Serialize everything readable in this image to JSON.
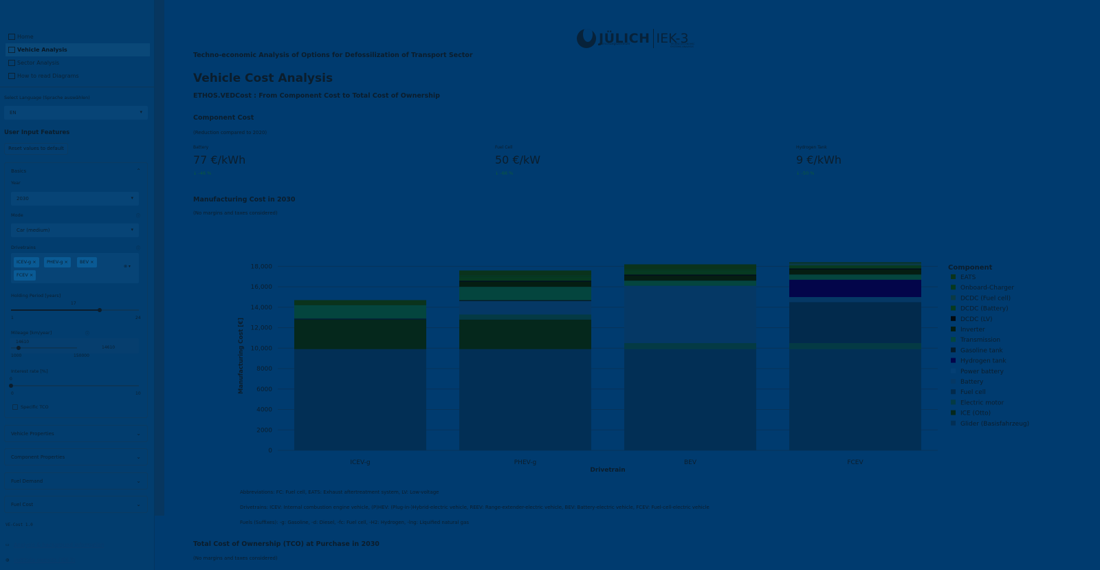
{
  "sidebar": {
    "nav": [
      {
        "label": "Home",
        "icon": "home-icon",
        "active": false
      },
      {
        "label": "Vehicle Analysis",
        "icon": "checkbox-icon",
        "active": true
      },
      {
        "label": "Sector Analysis",
        "icon": "chart-icon",
        "active": false
      },
      {
        "label": "How to read Diagrams",
        "icon": "checkbox-icon",
        "active": false
      }
    ],
    "language_label": "Select Language (Sprache auswählen)",
    "language_value": "EN",
    "inputs_heading": "User Input Features",
    "reset_label": "Reset values to default",
    "basics": {
      "title": "Basics",
      "year_label": "Year",
      "year_value": "2030",
      "mode_label": "Mode",
      "mode_value": "Car (medium)",
      "drivetrains_label": "Drivetrains",
      "drivetrains": [
        "ICEV-g",
        "PHEV-g",
        "BEV",
        "FCEV"
      ],
      "holding_label": "Holding Period [years]",
      "holding_value": "17",
      "holding_min": "1",
      "holding_max": "24",
      "holding_fraction": 0.696,
      "mileage_label": "Mileage [km/year]",
      "mileage_value": "14610",
      "mileage_min": "1000",
      "mileage_max": "150000",
      "mileage_input": "14610",
      "interest_label": "Interest rate [%]",
      "interest_value": "0",
      "interest_min": "0",
      "interest_max": "10",
      "specific_tco_label": "Specific TCO"
    },
    "expanders": [
      "Vehicle Properties",
      "Component Properties",
      "Fuel Demand",
      "Fuel Cost"
    ],
    "version": "VE-Cost 1.0",
    "link_analysis": "Analysis & background information",
    "link_institute": "Institute website (IEK-3)"
  },
  "logo": {
    "name": "JÜLICH",
    "sub": "Forschungszentrum",
    "iek": "IEK-3",
    "iek_sub1": "TECHNO-ECONOMIC",
    "iek_sub2": "SYSTEMS ANALYSIS"
  },
  "main": {
    "subtitle": "Techno-economic Analysis of Options for Defossilization of Transport Sector",
    "title": "Vehicle Cost Analysis",
    "tagline": "ETHOS.VEDCost : From Component Cost to Total Cost of Ownership",
    "component_cost_heading": "Component Cost",
    "component_cost_note": "(Reduction compared to 2020)",
    "metrics": [
      {
        "label": "Battery",
        "value": "77 €/kWh",
        "delta": "↓ -46 %"
      },
      {
        "label": "Fuel Cell",
        "value": "50 €/kW",
        "delta": "↓ -66 %"
      },
      {
        "label": "Hydrogen Tank",
        "value": "9 €/kWh",
        "delta": "↓ -50 %"
      }
    ],
    "manufacturing_heading": "Manufacturing Cost in 2030",
    "manufacturing_note": "(No margins and taxes considered)",
    "abbr": "Abbreviations: FC: Fuel cell, EATS: Exhaust aftertreatment system, LV: Low-voltage",
    "drivetrains_note": "Drivetrains: ICEV: Internal combustion engine vehicle, (P)HEV: (Plug-in-)Hybrid-electric vehicle, REEV: Range-extender-electric vehicle, BEV: Battery-electric vehicle, FCEV: Fuel-cell-electric vehicle",
    "fuels_note": "Fuels (Suffixes): -g: Gasoline, -d: Diesel, -fc: Fuel cell, -H2: Hydrogen, -lng: Liquified natural gas",
    "tco_heading": "Total Cost of Ownership (TCO) at Purchase in 2030",
    "tco_note": "(No margins and taxes considered)"
  },
  "chart_data": {
    "type": "bar",
    "stacked": true,
    "title": "",
    "xlabel": "Drivetrain",
    "ylabel": "Manufacturing Cost [€]",
    "ylim": [
      0,
      18500
    ],
    "yticks": [
      0,
      2000,
      4000,
      6000,
      8000,
      10000,
      12000,
      14000,
      16000,
      18000
    ],
    "ytick_labels": [
      "0",
      "2000",
      "4000",
      "6000",
      "8000",
      "10,000",
      "12,000",
      "14,000",
      "16,000",
      "18,000"
    ],
    "categories": [
      "ICEV-g",
      "PHEV-g",
      "BEV",
      "FCEV"
    ],
    "legend_title": "Component",
    "legend_position": "right",
    "series": [
      {
        "name": "Glider (Basisfahrzeug)",
        "color": "#022f55",
        "values": [
          9900,
          9900,
          9900,
          9900
        ]
      },
      {
        "name": "ICE (Otto)",
        "color": "#05281c",
        "values": [
          2900,
          2900,
          0,
          0
        ]
      },
      {
        "name": "Electric motor",
        "color": "#043a44",
        "values": [
          0,
          500,
          600,
          600
        ]
      },
      {
        "name": "Fuel cell",
        "color": "#022a4c",
        "values": [
          0,
          0,
          0,
          4000
        ]
      },
      {
        "name": "Battery",
        "color": "#053865",
        "values": [
          0,
          1300,
          5600,
          500
        ]
      },
      {
        "name": "Power battery",
        "color": "#043f74",
        "values": [
          0,
          0,
          0,
          0
        ]
      },
      {
        "name": "Hydrogen tank",
        "color": "#03054a",
        "values": [
          0,
          0,
          0,
          1700
        ]
      },
      {
        "name": "Gasoline tank",
        "color": "#051b2a",
        "values": [
          100,
          100,
          0,
          0
        ]
      },
      {
        "name": "Transmission",
        "color": "#04453e",
        "values": [
          1300,
          1300,
          500,
          500
        ]
      },
      {
        "name": "Inverter",
        "color": "#051d12",
        "values": [
          0,
          500,
          500,
          500
        ]
      },
      {
        "name": "DCDC (LV)",
        "color": "#020a10",
        "values": [
          0,
          100,
          100,
          100
        ]
      },
      {
        "name": "DCDC (Battery)",
        "color": "#073a20",
        "values": [
          0,
          300,
          300,
          300
        ]
      },
      {
        "name": "DCDC (Fuel cell)",
        "color": "#0a3a45",
        "values": [
          0,
          0,
          0,
          200
        ]
      },
      {
        "name": "Onboard-Charger",
        "color": "#06381f",
        "values": [
          0,
          200,
          200,
          0
        ]
      },
      {
        "name": "EATS",
        "color": "#0a331c",
        "values": [
          500,
          500,
          500,
          100
        ]
      }
    ]
  }
}
